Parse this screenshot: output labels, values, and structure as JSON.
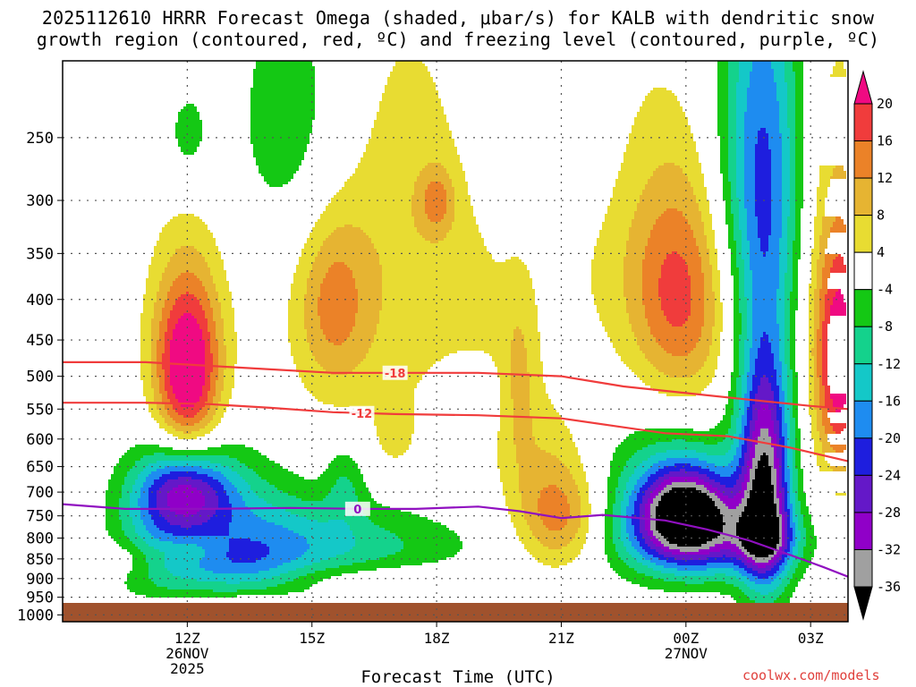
{
  "chart_data": {
    "type": "heatmap",
    "title_line1": "2025112610 HRRR Forecast Omega (shaded, μbar/s) for KALB with dendritic snow",
    "title_line2": "growth region (contoured, red, ºC) and freezing level (contoured, purple, ºC)",
    "xlabel": "Forecast Time (UTC)",
    "credit": "coolwx.com/models",
    "y_axis": {
      "scale": "log-pressure",
      "ylim": [
        200,
        1020
      ],
      "ticks": [
        "250",
        "300",
        "350",
        "400",
        "450",
        "500",
        "550",
        "600",
        "650",
        "700",
        "750",
        "800",
        "850",
        "900",
        "950",
        "1000"
      ]
    },
    "x_axis": {
      "xlim_hours": [
        9.0,
        27.9
      ],
      "ticks": [
        {
          "hour": 12,
          "label": "12Z",
          "sub1": "26NOV",
          "sub2": "2025"
        },
        {
          "hour": 15,
          "label": "15Z",
          "sub1": "",
          "sub2": ""
        },
        {
          "hour": 18,
          "label": "18Z",
          "sub1": "",
          "sub2": ""
        },
        {
          "hour": 21,
          "label": "21Z",
          "sub1": "",
          "sub2": ""
        },
        {
          "hour": 24,
          "label": "00Z",
          "sub1": "27NOV",
          "sub2": ""
        },
        {
          "hour": 27,
          "label": "03Z",
          "sub1": "",
          "sub2": ""
        }
      ]
    },
    "colorbar": {
      "levels": [
        -36,
        -32,
        -28,
        -24,
        -20,
        -16,
        -12,
        -8,
        -4,
        4,
        8,
        12,
        16,
        20
      ],
      "bins": [
        {
          "lo": -99,
          "hi": -36,
          "color": "#000000"
        },
        {
          "lo": -36,
          "hi": -32,
          "color": "#a0a0a0"
        },
        {
          "lo": -32,
          "hi": -28,
          "color": "#9000c8"
        },
        {
          "lo": -28,
          "hi": -24,
          "color": "#6418c8"
        },
        {
          "lo": -24,
          "hi": -20,
          "color": "#1e1ede"
        },
        {
          "lo": -20,
          "hi": -16,
          "color": "#1e8cf0"
        },
        {
          "lo": -16,
          "hi": -12,
          "color": "#14c8c8"
        },
        {
          "lo": -12,
          "hi": -8,
          "color": "#14d28c"
        },
        {
          "lo": -8,
          "hi": -4,
          "color": "#14c814"
        },
        {
          "lo": -4,
          "hi": 4,
          "color": "#ffffff"
        },
        {
          "lo": 4,
          "hi": 8,
          "color": "#e8dc32"
        },
        {
          "lo": 8,
          "hi": 12,
          "color": "#e6b432"
        },
        {
          "lo": 12,
          "hi": 16,
          "color": "#eb8228"
        },
        {
          "lo": 16,
          "hi": 20,
          "color": "#f03c3c"
        },
        {
          "lo": 20,
          "hi": 99,
          "color": "#f00a82"
        }
      ]
    },
    "omega_features": [
      {
        "t": 12.0,
        "p": 500,
        "amp": 23,
        "st": 0.55,
        "sp": 85
      },
      {
        "t": 12.0,
        "p": 420,
        "amp": 6,
        "st": 0.75,
        "sp": 90
      },
      {
        "t": 12.0,
        "p": 250,
        "amp": -6,
        "st": 0.45,
        "sp": 30
      },
      {
        "t": 12.0,
        "p": 700,
        "amp": -24,
        "st": 0.85,
        "sp": 60
      },
      {
        "t": 11.3,
        "p": 800,
        "amp": -9,
        "st": 0.8,
        "sp": 120
      },
      {
        "t": 13.7,
        "p": 780,
        "amp": -8,
        "st": 1.2,
        "sp": 110
      },
      {
        "t": 15.3,
        "p": 820,
        "amp": -11,
        "st": 2.4,
        "sp": 70
      },
      {
        "t": 13.0,
        "p": 870,
        "amp": -8,
        "st": 1.0,
        "sp": 50
      },
      {
        "t": 15.8,
        "p": 680,
        "amp": -7,
        "st": 0.35,
        "sp": 60
      },
      {
        "t": 12.0,
        "p": 830,
        "amp": 5,
        "st": 0.5,
        "sp": 22
      },
      {
        "t": 10.5,
        "p": 970,
        "amp": 5,
        "st": 1.5,
        "sp": 12
      },
      {
        "t": 13.8,
        "p": 960,
        "amp": 6,
        "st": 0.6,
        "sp": 12
      },
      {
        "t": 15.5,
        "p": 400,
        "amp": 9.5,
        "st": 0.6,
        "sp": 70
      },
      {
        "t": 16.0,
        "p": 450,
        "amp": 5,
        "st": 1.3,
        "sp": 120
      },
      {
        "t": 14.5,
        "p": 240,
        "amp": -7,
        "st": 1.0,
        "sp": 70
      },
      {
        "t": 17.3,
        "p": 280,
        "amp": 5,
        "st": 1.2,
        "sp": 110
      },
      {
        "t": 18.0,
        "p": 300,
        "amp": 9,
        "st": 0.3,
        "sp": 20
      },
      {
        "t": 18.8,
        "p": 470,
        "amp": 5.5,
        "st": 0.9,
        "sp": 120
      },
      {
        "t": 18.7,
        "p": 530,
        "amp": -8,
        "st": 0.55,
        "sp": 45
      },
      {
        "t": 17.0,
        "p": 590,
        "amp": 5,
        "st": 0.3,
        "sp": 40
      },
      {
        "t": 21.0,
        "p": 250,
        "amp": -6,
        "st": 1.2,
        "sp": 60
      },
      {
        "t": 21.0,
        "p": 760,
        "amp": 13,
        "st": 0.75,
        "sp": 80
      },
      {
        "t": 20.7,
        "p": 650,
        "amp": 6,
        "st": 0.8,
        "sp": 100
      },
      {
        "t": 20.0,
        "p": 500,
        "amp": 6,
        "st": 0.3,
        "sp": 100
      },
      {
        "t": 23.8,
        "p": 390,
        "amp": 13,
        "st": 0.8,
        "sp": 90
      },
      {
        "t": 24.5,
        "p": 430,
        "amp": 5,
        "st": 1.5,
        "sp": 120
      },
      {
        "t": 24.0,
        "p": 740,
        "amp": -34,
        "st": 0.8,
        "sp": 70
      },
      {
        "t": 24.5,
        "p": 810,
        "amp": -16,
        "st": 1.5,
        "sp": 70
      },
      {
        "t": 23.3,
        "p": 690,
        "amp": -8,
        "st": 1.4,
        "sp": 110
      },
      {
        "t": 25.9,
        "p": 700,
        "amp": -30,
        "st": 0.42,
        "sp": 160
      },
      {
        "t": 25.9,
        "p": 800,
        "amp": -10,
        "st": 0.5,
        "sp": 40
      },
      {
        "t": 25.9,
        "p": 420,
        "amp": -14,
        "st": 0.65,
        "sp": 200
      },
      {
        "t": 25.8,
        "p": 260,
        "amp": -12,
        "st": 0.8,
        "sp": 100
      },
      {
        "t": 27.7,
        "p": 480,
        "amp": 20,
        "st": 0.4,
        "sp": 120
      },
      {
        "t": 27.3,
        "p": 380,
        "amp": 6,
        "st": 0.7,
        "sp": 200
      },
      {
        "t": 22.0,
        "p": 270,
        "amp": 5,
        "st": 1.2,
        "sp": 120
      },
      {
        "t": 10.5,
        "p": 850,
        "amp": 5,
        "st": 0.6,
        "sp": 30
      },
      {
        "t": 16.5,
        "p": 900,
        "amp": 4.5,
        "st": 1.8,
        "sp": 30
      }
    ],
    "contours": [
      {
        "name": "-18",
        "color": "#f03c3c",
        "points": [
          [
            9.0,
            480
          ],
          [
            11.0,
            480
          ],
          [
            12.5,
            485
          ],
          [
            14.0,
            490
          ],
          [
            15.5,
            495
          ],
          [
            17.0,
            495
          ],
          [
            19.0,
            495
          ],
          [
            21.0,
            500
          ],
          [
            22.5,
            515
          ],
          [
            24.0,
            525
          ],
          [
            25.5,
            535
          ],
          [
            27.0,
            545
          ],
          [
            27.9,
            550
          ]
        ],
        "label_at": 17.0,
        "label_text": "-18"
      },
      {
        "name": "-12",
        "color": "#f03c3c",
        "points": [
          [
            9.0,
            540
          ],
          [
            11.0,
            540
          ],
          [
            12.5,
            542
          ],
          [
            14.0,
            548
          ],
          [
            15.5,
            555
          ],
          [
            17.0,
            558
          ],
          [
            19.0,
            560
          ],
          [
            21.0,
            565
          ],
          [
            22.5,
            580
          ],
          [
            23.5,
            590
          ],
          [
            25.0,
            595
          ],
          [
            26.5,
            615
          ],
          [
            27.9,
            640
          ]
        ],
        "label_at": 16.2,
        "label_text": "-12"
      },
      {
        "name": "0",
        "color": "#9010c0",
        "points": [
          [
            9.0,
            725
          ],
          [
            10.5,
            735
          ],
          [
            12.5,
            735
          ],
          [
            14.5,
            733
          ],
          [
            16.2,
            735
          ],
          [
            17.5,
            735
          ],
          [
            19.0,
            730
          ],
          [
            20.0,
            740
          ],
          [
            21.0,
            755
          ],
          [
            22.0,
            748
          ],
          [
            23.5,
            760
          ],
          [
            24.5,
            780
          ],
          [
            25.5,
            805
          ],
          [
            26.5,
            840
          ],
          [
            27.3,
            870
          ],
          [
            27.9,
            895
          ]
        ],
        "label_at": 16.1,
        "label_text": "0"
      }
    ]
  }
}
